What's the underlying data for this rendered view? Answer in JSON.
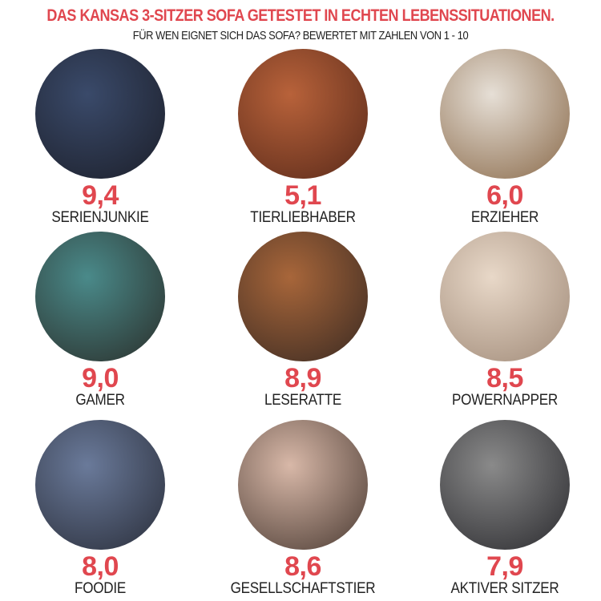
{
  "header": {
    "title": "DAS KANSAS 3-SITZER SOFA GETESTET IN ECHTEN LEBENSSITUATIONEN.",
    "subtitle": "FÜR WEN EIGNET SICH DAS SOFA? BEWERTET MIT ZAHLEN VON 1 - 10"
  },
  "accent_color": "#e0474f",
  "items": [
    {
      "score": "9,4",
      "label": "SERIENJUNKIE",
      "colors": [
        "#3a4a6a",
        "#1c1f2a"
      ]
    },
    {
      "score": "5,1",
      "label": "TIERLIEBHABER",
      "colors": [
        "#b8623a",
        "#5a2a1a"
      ]
    },
    {
      "score": "6,0",
      "label": "ERZIEHER",
      "colors": [
        "#e6dfd6",
        "#8a6a4a"
      ]
    },
    {
      "score": "9,0",
      "label": "GAMER",
      "colors": [
        "#4a8a8a",
        "#2a2e2a"
      ]
    },
    {
      "score": "8,9",
      "label": "LESERATTE",
      "colors": [
        "#a8663a",
        "#3a2a22"
      ]
    },
    {
      "score": "8,5",
      "label": "POWERNAPPER",
      "colors": [
        "#e8d8c8",
        "#a08a78"
      ]
    },
    {
      "score": "8,0",
      "label": "FOODIE",
      "colors": [
        "#6a7a9a",
        "#2a2e3a"
      ]
    },
    {
      "score": "8,6",
      "label": "GESELLSCHAFTSTIER",
      "colors": [
        "#d8b8a8",
        "#4a3a32"
      ]
    },
    {
      "score": "7,9",
      "label": "AKTIVER SITZER",
      "colors": [
        "#8a8a8a",
        "#2a2a2e"
      ]
    }
  ]
}
